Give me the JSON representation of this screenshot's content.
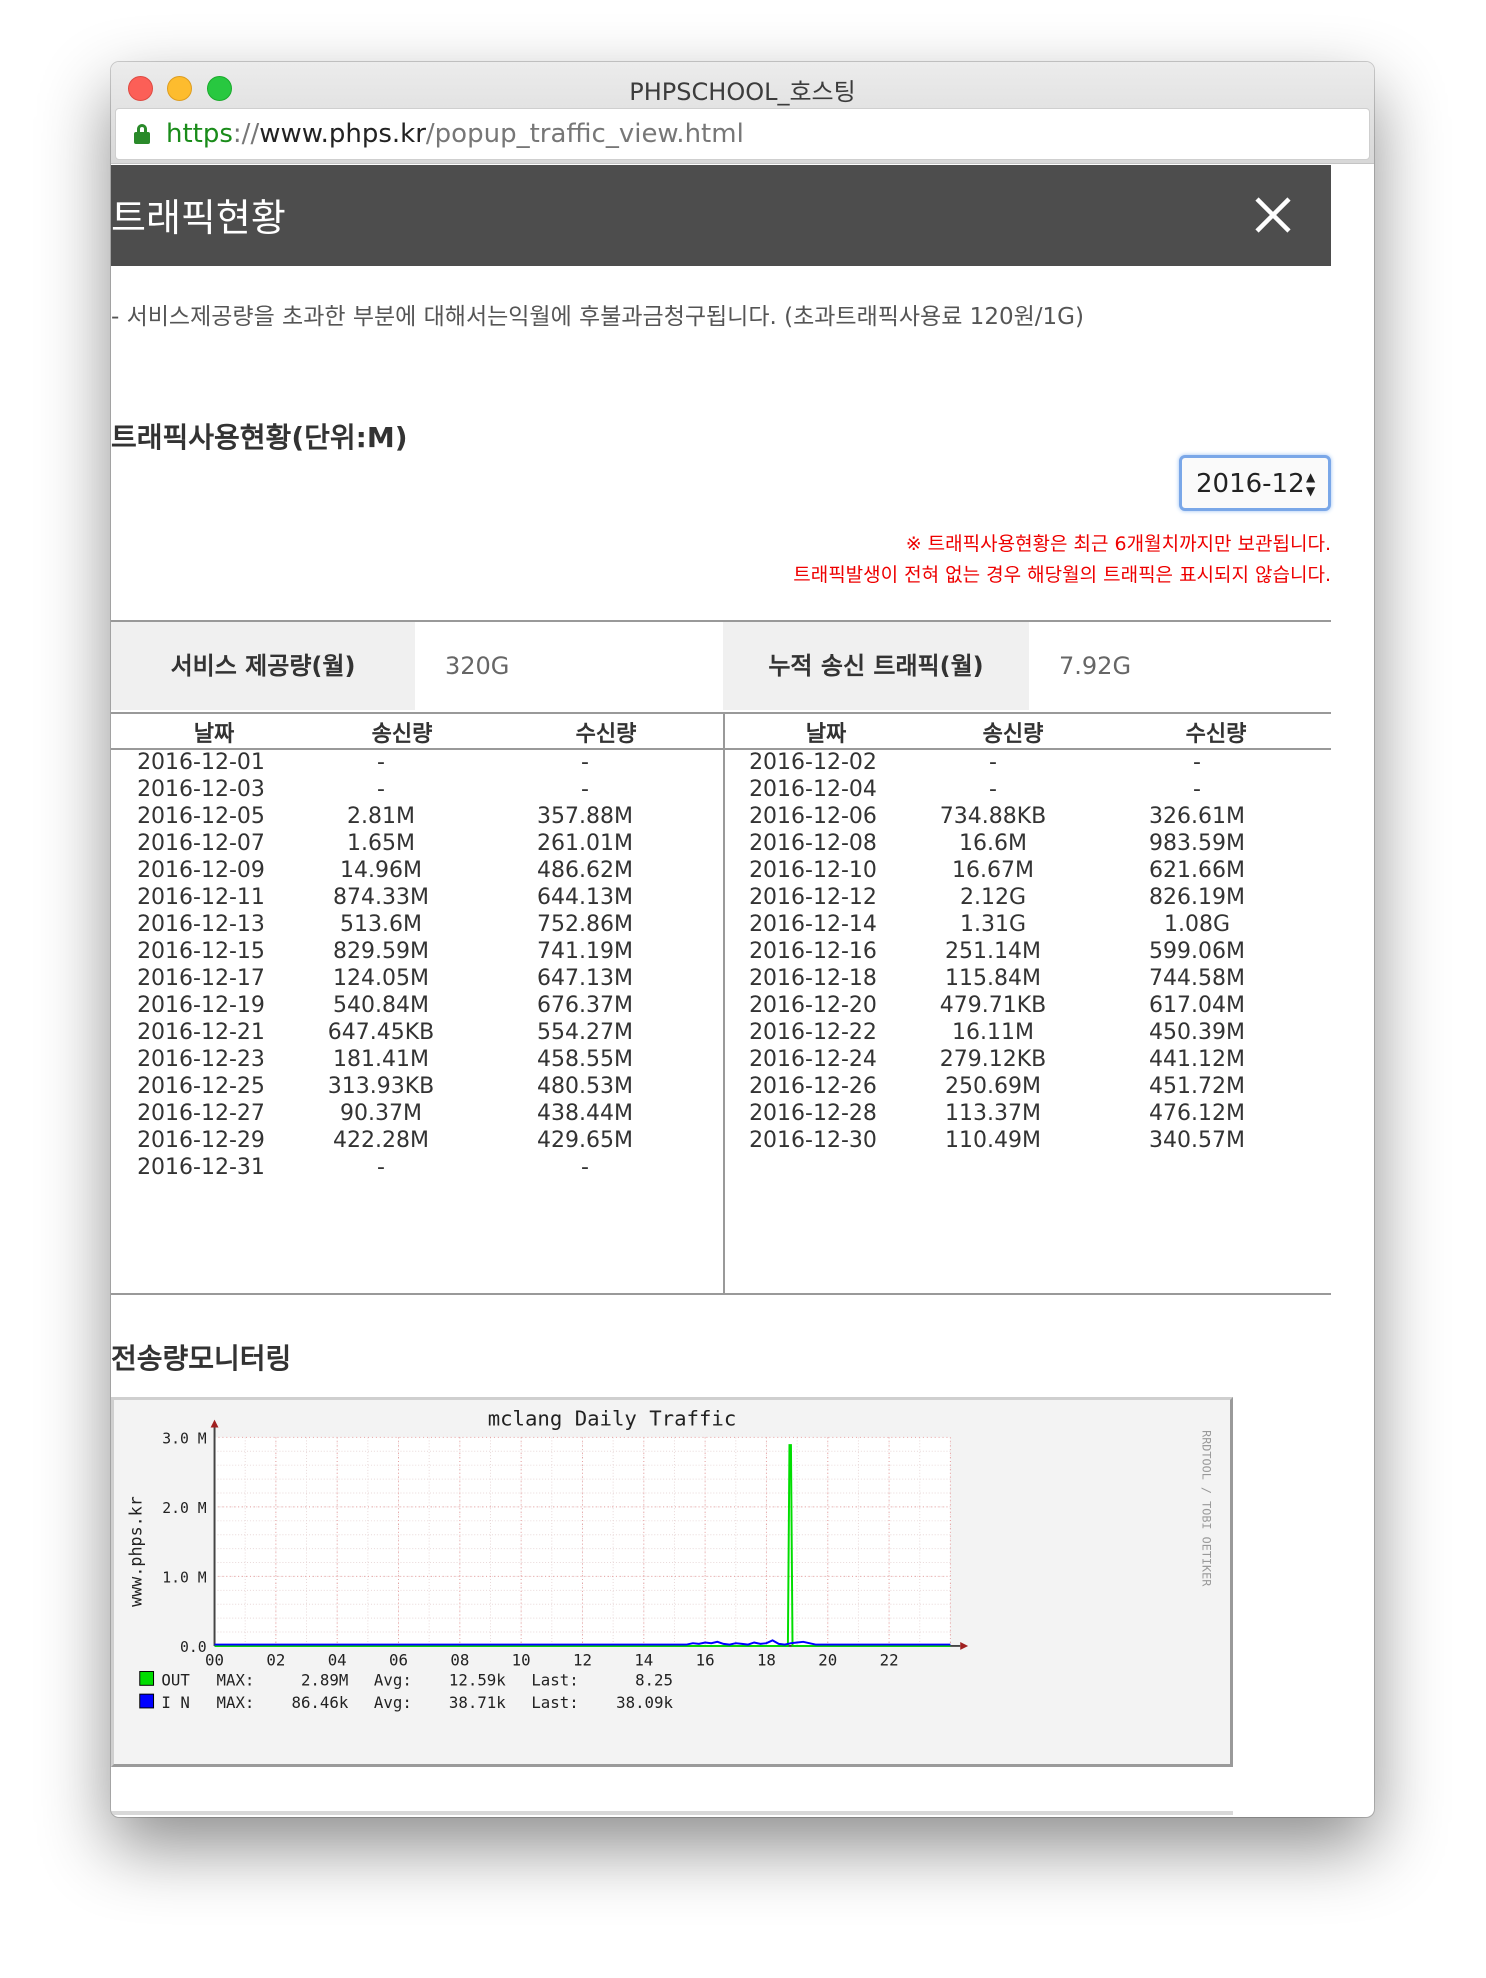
{
  "window": {
    "title": "PHPSCHOOL_호스팅"
  },
  "url": {
    "scheme": "https",
    "sep": "://",
    "host": "www.phps.kr",
    "path": "/popup_traffic_view.html"
  },
  "header": {
    "title": "트래픽현황"
  },
  "notice": "- 서비스제공량을 초과한 부분에 대해서는익월에 후불과금청구됩니다. (초과트래픽사용료 120원/1G)",
  "usage": {
    "title": "트래픽사용현황(단위:M)",
    "selected_month": "2016-12",
    "warning1": "※ 트래픽사용현황은 최근 6개월치까지만 보관됩니다.",
    "warning2": "트래픽발생이 전혀 없는 경우 해당월의 트래픽은 표시되지 않습니다."
  },
  "summary": {
    "service_label": "서비스 제공량(월)",
    "service_value": "320G",
    "total_label": "누적 송신 트래픽(월)",
    "total_value": "7.92G"
  },
  "table": {
    "headers": [
      "날짜",
      "송신량",
      "수신량"
    ],
    "left": [
      [
        "2016-12-01",
        "-",
        "-"
      ],
      [
        "2016-12-03",
        "-",
        "-"
      ],
      [
        "2016-12-05",
        "2.81M",
        "357.88M"
      ],
      [
        "2016-12-07",
        "1.65M",
        "261.01M"
      ],
      [
        "2016-12-09",
        "14.96M",
        "486.62M"
      ],
      [
        "2016-12-11",
        "874.33M",
        "644.13M"
      ],
      [
        "2016-12-13",
        "513.6M",
        "752.86M"
      ],
      [
        "2016-12-15",
        "829.59M",
        "741.19M"
      ],
      [
        "2016-12-17",
        "124.05M",
        "647.13M"
      ],
      [
        "2016-12-19",
        "540.84M",
        "676.37M"
      ],
      [
        "2016-12-21",
        "647.45KB",
        "554.27M"
      ],
      [
        "2016-12-23",
        "181.41M",
        "458.55M"
      ],
      [
        "2016-12-25",
        "313.93KB",
        "480.53M"
      ],
      [
        "2016-12-27",
        "90.37M",
        "438.44M"
      ],
      [
        "2016-12-29",
        "422.28M",
        "429.65M"
      ],
      [
        "2016-12-31",
        "-",
        "-"
      ]
    ],
    "right": [
      [
        "2016-12-02",
        "-",
        "-"
      ],
      [
        "2016-12-04",
        "-",
        "-"
      ],
      [
        "2016-12-06",
        "734.88KB",
        "326.61M"
      ],
      [
        "2016-12-08",
        "16.6M",
        "983.59M"
      ],
      [
        "2016-12-10",
        "16.67M",
        "621.66M"
      ],
      [
        "2016-12-12",
        "2.12G",
        "826.19M"
      ],
      [
        "2016-12-14",
        "1.31G",
        "1.08G"
      ],
      [
        "2016-12-16",
        "251.14M",
        "599.06M"
      ],
      [
        "2016-12-18",
        "115.84M",
        "744.58M"
      ],
      [
        "2016-12-20",
        "479.71KB",
        "617.04M"
      ],
      [
        "2016-12-22",
        "16.11M",
        "450.39M"
      ],
      [
        "2016-12-24",
        "279.12KB",
        "441.12M"
      ],
      [
        "2016-12-26",
        "250.69M",
        "451.72M"
      ],
      [
        "2016-12-28",
        "113.37M",
        "476.12M"
      ],
      [
        "2016-12-30",
        "110.49M",
        "340.57M"
      ]
    ]
  },
  "monitor": {
    "title": "전송량모니터링"
  },
  "chart_data": {
    "type": "line",
    "title": "mclang Daily Traffic",
    "ylabel": "www.phps.kr",
    "watermark": "RRDTOOL / TOBI OETIKER",
    "ylim": [
      0,
      3.0
    ],
    "yticks": [
      "0.0",
      "1.0 M",
      "2.0 M",
      "3.0 M"
    ],
    "xlim": [
      0,
      24
    ],
    "xticks": [
      "00",
      "02",
      "04",
      "06",
      "08",
      "10",
      "12",
      "14",
      "16",
      "18",
      "20",
      "22"
    ],
    "series": [
      {
        "name": "OUT",
        "color": "#00dd00",
        "x": [
          0,
          16,
          18.7,
          18.75,
          18.8,
          18.85,
          19.5,
          24
        ],
        "y": [
          0,
          0,
          0,
          2.89,
          2.89,
          0,
          0,
          0
        ]
      },
      {
        "name": "I N",
        "color": "#0000ff",
        "x": [
          0,
          15.4,
          15.6,
          15.8,
          16.0,
          16.2,
          16.4,
          16.6,
          16.8,
          17.0,
          17.2,
          17.4,
          17.6,
          17.8,
          18.0,
          18.2,
          18.4,
          18.6,
          18.8,
          19.0,
          19.2,
          19.4,
          19.6,
          24
        ],
        "y": [
          0.02,
          0.02,
          0.04,
          0.03,
          0.05,
          0.04,
          0.06,
          0.03,
          0.02,
          0.04,
          0.03,
          0.02,
          0.05,
          0.03,
          0.04,
          0.08,
          0.03,
          0.02,
          0.04,
          0.05,
          0.06,
          0.04,
          0.02,
          0.02
        ]
      }
    ],
    "legend": [
      {
        "name": "OUT",
        "color": "#00dd00",
        "max_label": "MAX:",
        "max": "2.89M",
        "avg_label": "Avg:",
        "avg": "12.59k",
        "last_label": "Last:",
        "last": "8.25"
      },
      {
        "name": "I N",
        "color": "#0000ff",
        "max_label": "MAX:",
        "max": "86.46k",
        "avg_label": "Avg:",
        "avg": "38.71k",
        "last_label": "Last:",
        "last": "38.09k"
      }
    ]
  }
}
